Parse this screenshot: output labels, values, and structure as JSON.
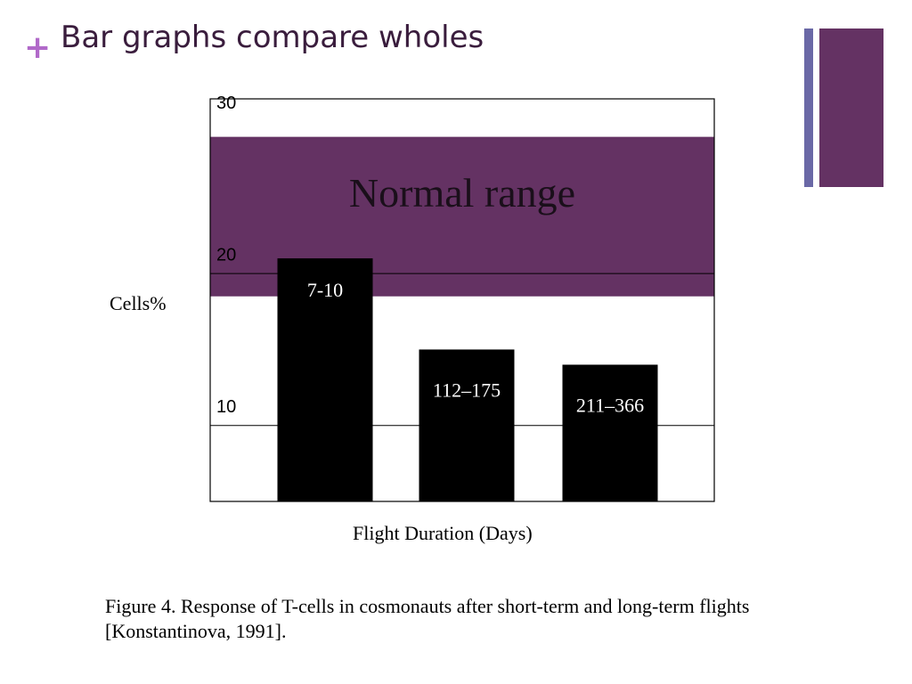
{
  "slide": {
    "bullet_symbol": "+",
    "title": "Bar graphs compare wholes",
    "caption": "Figure 4. Response of T-cells in cosmonauts after short-term and long-term flights [Konstantinova, 1991].",
    "colors": {
      "accent_purple": "#643263",
      "accent_blue": "#6a68a6",
      "bullet": "#b169c9",
      "title": "#3a1d3d"
    }
  },
  "chart_data": {
    "type": "bar",
    "ylabel": "Cells%",
    "xlabel": "Flight Duration (Days)",
    "ylim": [
      5,
      31.5
    ],
    "yticks": [
      10,
      20,
      30
    ],
    "grid_y": [
      10,
      20
    ],
    "categories": [
      "7-10",
      "112–175",
      "211–366"
    ],
    "values": [
      21,
      15,
      14
    ],
    "bar_color": "#000000",
    "band": {
      "label": "Normal range",
      "from": 18.5,
      "to": 29,
      "color": "#643263"
    }
  }
}
